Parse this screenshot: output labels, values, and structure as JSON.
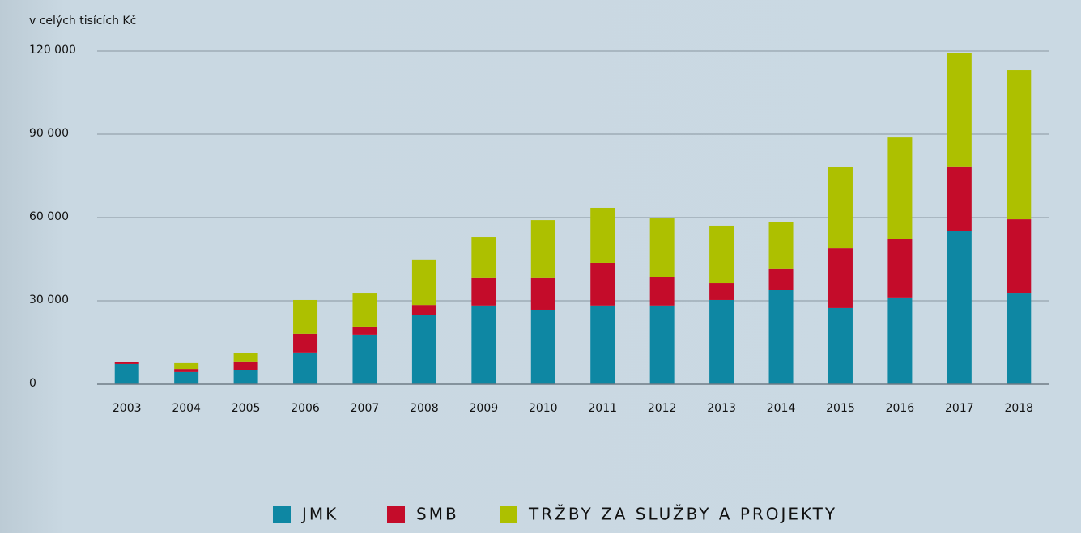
{
  "chart_data": {
    "type": "stacked_bar",
    "subtitle": "v celých tisících Kč",
    "categories": [
      "2003",
      "2004",
      "2005",
      "2006",
      "2007",
      "2008",
      "2009",
      "2010",
      "2011",
      "2012",
      "2013",
      "2014",
      "2015",
      "2016",
      "2017",
      "2018"
    ],
    "series": [
      {
        "name": "JMK",
        "color": "#0e87a3",
        "values": [
          7300,
          4400,
          5200,
          11400,
          17800,
          24800,
          28300,
          26800,
          28300,
          28300,
          30300,
          33800,
          27400,
          31200,
          55100,
          32900
        ]
      },
      {
        "name": "SMB",
        "color": "#c40c2a",
        "values": [
          800,
          1100,
          3000,
          6700,
          2900,
          3700,
          9900,
          11400,
          15400,
          10200,
          6100,
          7900,
          21500,
          21200,
          23300,
          26500
        ]
      },
      {
        "name": "TRŽBY ZA SLUŽBY A PROJEKTY",
        "color": "#adc000",
        "values": [
          0,
          2100,
          2900,
          12200,
          12200,
          16400,
          14800,
          20900,
          19800,
          21200,
          20700,
          16600,
          29200,
          36400,
          41000,
          53600
        ]
      }
    ],
    "ylim": [
      0,
      120000
    ],
    "yticks": [
      0,
      {
        "value": 30000,
        "label": "30 000"
      },
      {
        "value": 60000,
        "label": "60 000"
      },
      {
        "value": 90000,
        "label": "90 000"
      },
      {
        "value": 120000,
        "label": "120 000"
      }
    ],
    "grid": true,
    "legend": "bottom"
  }
}
